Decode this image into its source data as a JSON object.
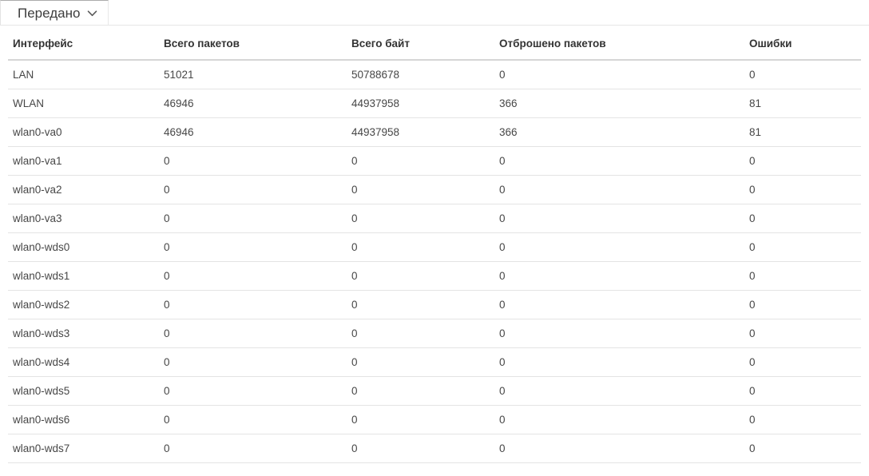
{
  "panel": {
    "title": "Передано",
    "state": "expanded",
    "chevron_icon": "chevron-down"
  },
  "table": {
    "columns": [
      "Интерфейс",
      "Всего пакетов",
      "Всего байт",
      "Отброшено пакетов",
      "Ошибки"
    ],
    "rows": [
      [
        "LAN",
        "51021",
        "50788678",
        "0",
        "0"
      ],
      [
        "WLAN",
        "46946",
        "44937958",
        "366",
        "81"
      ],
      [
        "wlan0-va0",
        "46946",
        "44937958",
        "366",
        "81"
      ],
      [
        "wlan0-va1",
        "0",
        "0",
        "0",
        "0"
      ],
      [
        "wlan0-va2",
        "0",
        "0",
        "0",
        "0"
      ],
      [
        "wlan0-va3",
        "0",
        "0",
        "0",
        "0"
      ],
      [
        "wlan0-wds0",
        "0",
        "0",
        "0",
        "0"
      ],
      [
        "wlan0-wds1",
        "0",
        "0",
        "0",
        "0"
      ],
      [
        "wlan0-wds2",
        "0",
        "0",
        "0",
        "0"
      ],
      [
        "wlan0-wds3",
        "0",
        "0",
        "0",
        "0"
      ],
      [
        "wlan0-wds4",
        "0",
        "0",
        "0",
        "0"
      ],
      [
        "wlan0-wds5",
        "0",
        "0",
        "0",
        "0"
      ],
      [
        "wlan0-wds6",
        "0",
        "0",
        "0",
        "0"
      ],
      [
        "wlan0-wds7",
        "0",
        "0",
        "0",
        "0"
      ]
    ]
  },
  "colors": {
    "title_text": "#3d3d3d",
    "header_text": "#333333",
    "cell_text": "#474747",
    "row_border": "#e4e4e4",
    "header_border": "#d6d6d6"
  }
}
